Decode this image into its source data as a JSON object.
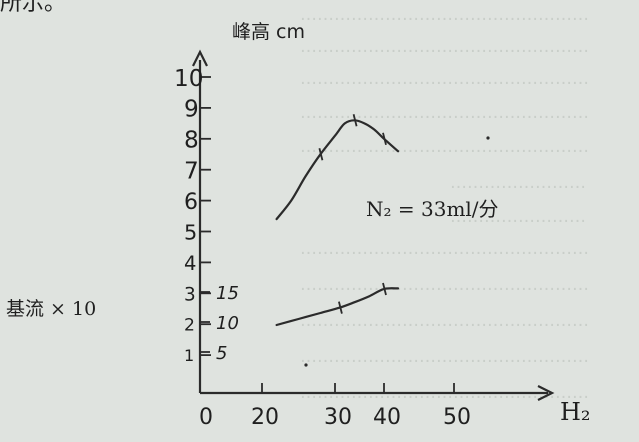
{
  "page": {
    "top_fragment": "所示。",
    "background_color": "#dfe3df",
    "ink_color": "#2b2b2b"
  },
  "chart_data": {
    "type": "line",
    "ylabel": "峰高 cm",
    "xlabel": "H₂",
    "annotation": "N₂ = 33ml/分",
    "secondary_ylabel": "基流 × 10",
    "x_ticks": [
      "0",
      "20",
      "30",
      "40",
      "50"
    ],
    "y_ticks": [
      "1",
      "2",
      "3",
      "4",
      "5",
      "6",
      "7",
      "8",
      "9",
      "10"
    ],
    "secondary_y_ticks": [
      "5",
      "10",
      "15"
    ],
    "xlim": [
      0,
      55
    ],
    "ylim": [
      0,
      10.5
    ],
    "secondary_ylim": [
      0,
      21
    ],
    "series": [
      {
        "axis": "left",
        "x": [
          22,
          24,
          26,
          28,
          30,
          32,
          34,
          36,
          38,
          40,
          42
        ],
        "y": [
          5.4,
          6.0,
          6.8,
          7.5,
          8.1,
          8.5,
          8.6,
          8.5,
          8.3,
          8.0,
          7.6
        ]
      },
      {
        "axis": "right",
        "x": [
          22,
          25,
          28,
          31,
          34,
          37,
          40,
          42
        ],
        "y": [
          9.5,
          10.5,
          11.5,
          12.4,
          13.3,
          14.3,
          15.5,
          15.6
        ]
      }
    ]
  }
}
